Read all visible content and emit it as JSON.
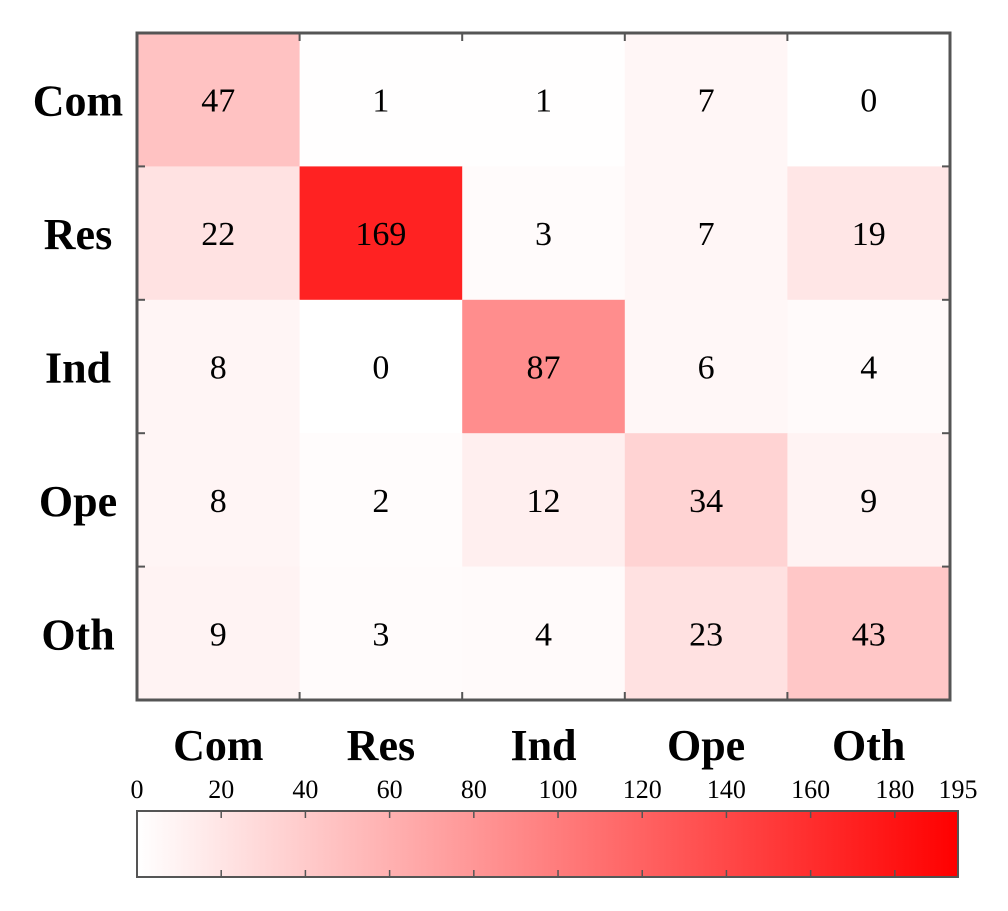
{
  "chart_data": {
    "type": "heatmap",
    "title": "",
    "xlabel": "",
    "ylabel": "",
    "rows": [
      "Com",
      "Res",
      "Ind",
      "Ope",
      "Oth"
    ],
    "columns": [
      "Com",
      "Res",
      "Ind",
      "Ope",
      "Oth"
    ],
    "values": [
      [
        47,
        1,
        1,
        7,
        0
      ],
      [
        22,
        169,
        3,
        7,
        19
      ],
      [
        8,
        0,
        87,
        6,
        4
      ],
      [
        8,
        2,
        12,
        34,
        9
      ],
      [
        9,
        3,
        4,
        23,
        43
      ]
    ],
    "color_range": [
      0,
      195
    ],
    "colors": {
      "low": "#ffffff",
      "high": "#ff0000",
      "frame": "#555555"
    },
    "colorbar": {
      "ticks": [
        0,
        20,
        40,
        60,
        80,
        100,
        120,
        140,
        160,
        180,
        195
      ],
      "tick_labels": [
        "0",
        "20",
        "40",
        "60",
        "80",
        "100",
        "120",
        "140",
        "160",
        "180",
        "195"
      ],
      "placement": "bottom"
    },
    "grid": false,
    "legend": "none"
  }
}
